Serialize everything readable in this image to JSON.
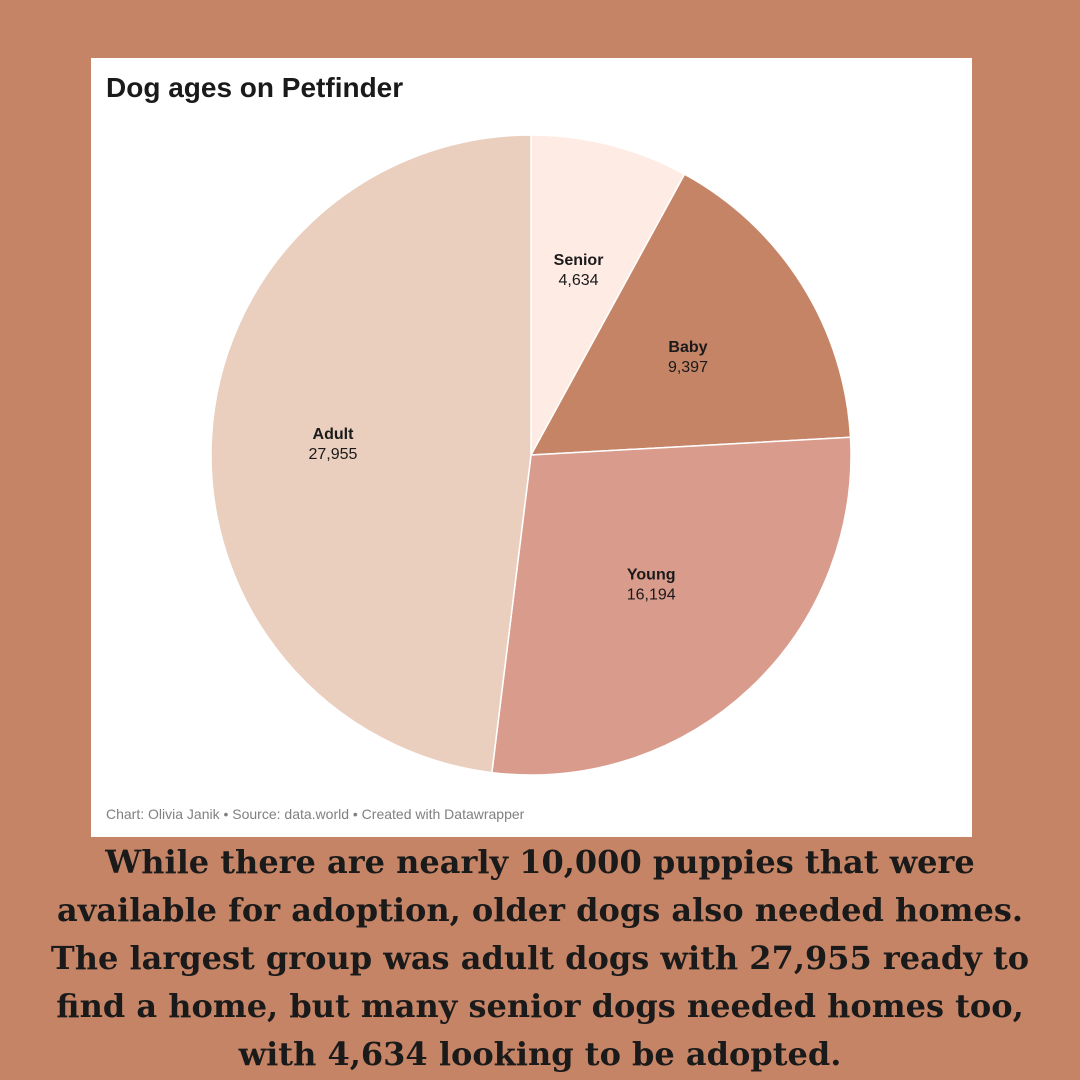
{
  "chart_data": {
    "type": "pie",
    "title": "Dog ages on Petfinder",
    "slices": [
      {
        "label": "Senior",
        "value": 4634,
        "display": "4,634",
        "color": "#fdebe4"
      },
      {
        "label": "Baby",
        "value": 9397,
        "display": "9,397",
        "color": "#c58466"
      },
      {
        "label": "Young",
        "value": 16194,
        "display": "16,194",
        "color": "#d99b8c"
      },
      {
        "label": "Adult",
        "value": 27955,
        "display": "27,955",
        "color": "#eacebe"
      }
    ],
    "footer": "Chart: Olivia Janik • Source: data.world • Created with Datawrapper"
  },
  "caption": "While there are nearly 10,000 puppies that were available for adoption, older dogs also needed homes. The largest group was adult dogs with 27,955 ready to find a home, but many senior dogs needed homes too, with 4,634 looking to be adopted.",
  "colors": {
    "page_background": "#c58466",
    "card_background": "#ffffff"
  }
}
